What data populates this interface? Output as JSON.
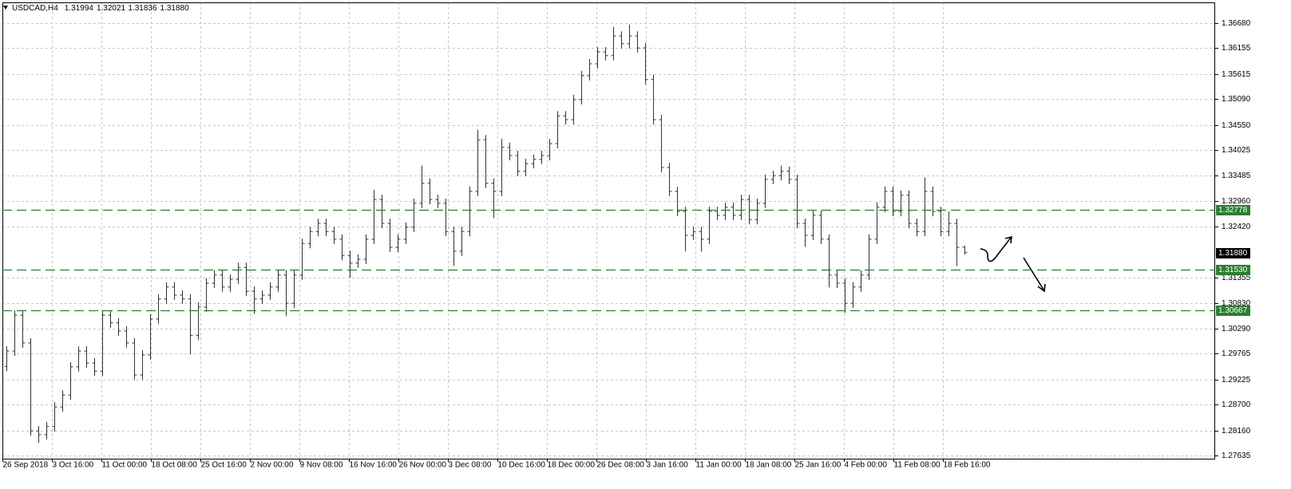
{
  "chart_data": {
    "type": "ohlc",
    "symbol": "USDCAD,H4",
    "quote": [
      1.31994,
      1.32021,
      1.31836,
      {
        "value": 1.3188,
        "label": "1.31880"
      }
    ],
    "ylim": [
      1.27568,
      1.37114
    ],
    "yticks": [
      {
        "value": 1.3668,
        "label": "1.36680"
      },
      1.36155,
      1.35615,
      {
        "value": 1.3509,
        "label": "1.35090"
      },
      {
        "value": 1.3455,
        "label": "1.34550"
      },
      1.34025,
      1.33485,
      {
        "value": 1.3296,
        "label": "1.32960"
      },
      {
        "value": 1.3242,
        "label": "1.32420"
      },
      1.31355,
      {
        "value": 1.3083,
        "label": "1.30830"
      },
      {
        "value": 1.3029,
        "label": "1.30290"
      },
      1.29765,
      1.29225,
      {
        "value": 1.287,
        "label": "1.28700"
      },
      {
        "value": 1.2816,
        "label": "1.28160"
      },
      1.27635
    ],
    "x_labels": [
      "26 Sep 2018",
      "3 Oct 16:00",
      "11 Oct 00:00",
      "18 Oct 08:00",
      "25 Oct 16:00",
      "2 Nov 00:00",
      "9 Nov 08:00",
      "16 Nov 16:00",
      "26 Nov 00:00",
      "3 Dec 08:00",
      "10 Dec 16:00",
      "18 Dec 00:00",
      "26 Dec 08:00",
      "3 Jan 16:00",
      "11 Jan 00:00",
      "18 Jan 08:00",
      "25 Jan 16:00",
      "4 Feb 00:00",
      "11 Feb 08:00",
      "18 Feb 16:00"
    ],
    "grid": true,
    "bar_color": "#333333",
    "open": [
      1.295,
      1.2982,
      1.3057,
      1.2999,
      1.2815,
      1.2807,
      1.2824,
      1.2865,
      1.289,
      1.2949,
      1.2982,
      1.2957,
      1.294,
      1.3057,
      1.3041,
      1.3024,
      1.2999,
      1.2932,
      1.2974,
      1.3049,
      1.3091,
      1.3116,
      1.3099,
      1.3091,
      1.3015,
      1.3074,
      1.3124,
      1.3141,
      1.3116,
      1.3132,
      1.3157,
      1.3107,
      1.3091,
      1.3099,
      1.3116,
      1.3141,
      1.3082,
      1.3141,
      1.3207,
      1.3232,
      1.3249,
      1.3232,
      1.3216,
      1.3182,
      1.3166,
      1.3174,
      1.3216,
      1.3299,
      1.3249,
      1.3199,
      1.3216,
      1.3241,
      1.3291,
      1.3333,
      1.3299,
      1.3291,
      1.3232,
      1.3191,
      1.3232,
      1.3316,
      1.3424,
      1.3333,
      1.3316,
      1.3408,
      1.3391,
      1.3358,
      1.3374,
      1.3383,
      1.3391,
      1.3416,
      1.3474,
      1.3466,
      1.3508,
      1.3558,
      1.3583,
      1.3608,
      1.36,
      1.3641,
      1.3625,
      1.3641,
      1.3616,
      1.355,
      1.3466,
      1.3366,
      1.3316,
      1.3274,
      1.3224,
      1.3232,
      1.3216,
      1.3274,
      1.3266,
      1.3283,
      1.3266,
      1.3299,
      1.3257,
      1.3291,
      1.3341,
      1.3349,
      1.3358,
      1.3341,
      1.3249,
      1.3224,
      1.3266,
      1.3216,
      1.3141,
      1.3124,
      1.3082,
      1.3116,
      1.3141,
      1.3216,
      1.3283,
      1.3316,
      1.3274,
      1.3308,
      1.3249,
      1.3232,
      1.3316,
      1.3274,
      1.3232,
      1.3249,
      1.31994
    ],
    "high": [
      1.2992,
      1.3067,
      1.3067,
      1.3009,
      1.2825,
      1.2834,
      1.2875,
      1.29,
      1.2959,
      1.2992,
      1.2992,
      1.2967,
      1.3067,
      1.3067,
      1.3051,
      1.3034,
      1.3009,
      1.2984,
      1.3059,
      1.3101,
      1.3126,
      1.3126,
      1.3109,
      1.3101,
      1.3084,
      1.3134,
      1.3151,
      1.3151,
      1.3142,
      1.3167,
      1.3167,
      1.3117,
      1.3109,
      1.3126,
      1.3151,
      1.3151,
      1.3151,
      1.3217,
      1.3242,
      1.3259,
      1.3259,
      1.3242,
      1.3226,
      1.3192,
      1.3184,
      1.3226,
      1.3319,
      1.3309,
      1.3259,
      1.3226,
      1.3251,
      1.3301,
      1.337,
      1.3343,
      1.3309,
      1.3301,
      1.3242,
      1.3242,
      1.3326,
      1.3445,
      1.3434,
      1.3343,
      1.3426,
      1.3418,
      1.3401,
      1.3384,
      1.3393,
      1.3401,
      1.3426,
      1.3484,
      1.3484,
      1.3518,
      1.3568,
      1.3593,
      1.3618,
      1.3618,
      1.366,
      1.3651,
      1.3665,
      1.3651,
      1.3626,
      1.356,
      1.3476,
      1.3376,
      1.3326,
      1.3284,
      1.3242,
      1.3242,
      1.3284,
      1.3284,
      1.3293,
      1.3293,
      1.3309,
      1.3309,
      1.3301,
      1.3351,
      1.3359,
      1.337,
      1.3368,
      1.3351,
      1.3259,
      1.3276,
      1.3276,
      1.3226,
      1.3151,
      1.3134,
      1.3126,
      1.3151,
      1.3226,
      1.3293,
      1.3326,
      1.3326,
      1.3318,
      1.3318,
      1.3259,
      1.3345,
      1.3326,
      1.3284,
      1.3274,
      1.3259,
      1.32021
    ],
    "low": [
      1.294,
      1.2972,
      1.2989,
      1.2805,
      1.279,
      1.2797,
      1.2814,
      1.2855,
      1.288,
      1.2939,
      1.2947,
      1.293,
      1.293,
      1.3031,
      1.3014,
      1.2989,
      1.2922,
      1.2922,
      1.2964,
      1.3039,
      1.3081,
      1.3089,
      1.3081,
      1.2975,
      1.3005,
      1.3064,
      1.3114,
      1.3106,
      1.3106,
      1.3122,
      1.3097,
      1.306,
      1.3081,
      1.3089,
      1.3106,
      1.3055,
      1.3072,
      1.3131,
      1.3197,
      1.3222,
      1.3222,
      1.3206,
      1.3172,
      1.3135,
      1.3156,
      1.3164,
      1.3206,
      1.3239,
      1.3189,
      1.3189,
      1.3206,
      1.3231,
      1.3281,
      1.3289,
      1.3281,
      1.3222,
      1.316,
      1.3181,
      1.3222,
      1.3306,
      1.3323,
      1.326,
      1.3306,
      1.3381,
      1.3348,
      1.3348,
      1.3364,
      1.3373,
      1.3381,
      1.3406,
      1.3456,
      1.3456,
      1.3498,
      1.3548,
      1.3573,
      1.359,
      1.359,
      1.3615,
      1.3615,
      1.3606,
      1.354,
      1.3456,
      1.3356,
      1.3306,
      1.3264,
      1.319,
      1.3214,
      1.319,
      1.3206,
      1.3256,
      1.3256,
      1.3256,
      1.3256,
      1.3247,
      1.3247,
      1.3281,
      1.3331,
      1.3339,
      1.3331,
      1.3239,
      1.32,
      1.3214,
      1.3206,
      1.3115,
      1.3114,
      1.3062,
      1.3072,
      1.3106,
      1.3131,
      1.3206,
      1.3273,
      1.3264,
      1.3264,
      1.3239,
      1.3222,
      1.3222,
      1.3264,
      1.3222,
      1.3222,
      1.316,
      1.31836
    ],
    "close": [
      1.2982,
      1.3057,
      1.2999,
      1.2815,
      1.2807,
      1.2824,
      1.2865,
      1.289,
      1.2949,
      1.2982,
      1.2957,
      1.294,
      1.3057,
      1.3041,
      1.3024,
      1.2999,
      1.2932,
      1.2974,
      1.3049,
      1.3091,
      1.3116,
      1.3099,
      1.3091,
      1.3015,
      1.3074,
      1.3124,
      1.3141,
      1.3116,
      1.3132,
      1.3157,
      1.3107,
      1.3091,
      1.3099,
      1.3116,
      1.3141,
      1.3082,
      1.3141,
      1.3207,
      1.3232,
      1.3249,
      1.3232,
      1.3216,
      1.3182,
      1.3166,
      1.3174,
      1.3216,
      1.3299,
      1.3249,
      1.3199,
      1.3216,
      1.3241,
      1.3291,
      1.3333,
      1.3299,
      1.3291,
      1.3232,
      1.3191,
      1.3232,
      1.3316,
      1.3424,
      1.3333,
      1.3316,
      1.3408,
      1.3391,
      1.3358,
      1.3374,
      1.3383,
      1.3391,
      1.3416,
      1.3474,
      1.3466,
      1.3508,
      1.3558,
      1.3583,
      1.3608,
      1.36,
      1.3641,
      1.3625,
      1.3641,
      1.3616,
      1.355,
      1.3466,
      1.3366,
      1.3316,
      1.3274,
      1.3224,
      1.3232,
      1.3216,
      1.3274,
      1.3266,
      1.3283,
      1.3266,
      1.3299,
      1.3257,
      1.3291,
      1.3341,
      1.3349,
      1.3358,
      1.3341,
      1.3249,
      1.3224,
      1.3266,
      1.3216,
      1.3141,
      1.3124,
      1.3082,
      1.3116,
      1.3141,
      1.3216,
      1.3283,
      1.3316,
      1.3274,
      1.3308,
      1.3249,
      1.3232,
      1.3316,
      1.3274,
      1.3232,
      1.3249,
      1.3199,
      1.3188
    ],
    "levels": [
      1.32778,
      {
        "value": 1.3153,
        "label": "1.31530"
      },
      1.30667
    ],
    "level_color": "#2e7d32",
    "last_price": {
      "value": 1.3188,
      "label": "1.31880"
    },
    "last_price_color": "#000000"
  }
}
